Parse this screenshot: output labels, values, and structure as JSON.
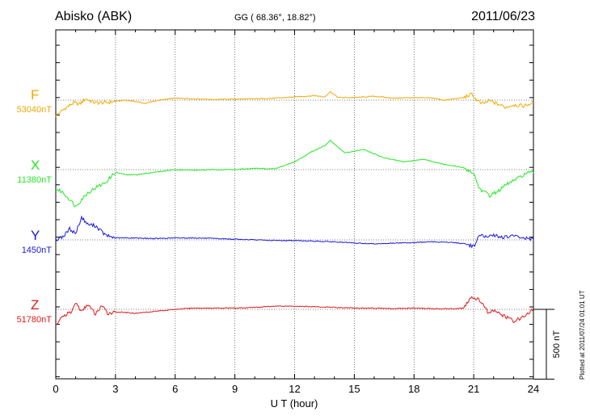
{
  "header": {
    "station": "Abisko (ABK)",
    "coords": "GG ( 68.36°,  18.82°)",
    "date": "2011/06/23"
  },
  "plotted_note": "Plotted at 2011/07/24 01:01 UT",
  "chart_data": {
    "type": "line",
    "xlabel": "U T (hour)",
    "xlim": [
      0,
      24
    ],
    "xticks": [
      0,
      3,
      6,
      9,
      12,
      15,
      18,
      21,
      24
    ],
    "scale_bar_label": "500 nT",
    "grid": true,
    "series": [
      {
        "name": "F",
        "baseline_label": "53040nT",
        "color": "#f0a800",
        "offset_x": [
          0,
          0.5,
          0.9,
          1.2,
          1.5,
          1.8,
          2.0,
          2.5,
          3.0,
          3.5,
          4.0,
          4.5,
          5.0,
          5.5,
          6.0,
          7.0,
          8.0,
          9.0,
          10.0,
          11.0,
          12.0,
          12.5,
          13.0,
          13.5,
          13.8,
          14.2,
          15.0,
          16.0,
          17.0,
          18.0,
          19.0,
          19.5,
          20.0,
          20.5,
          20.9,
          21.1,
          21.4,
          21.8,
          22.2,
          22.6,
          23.0,
          23.5,
          24.0
        ],
        "offset_y": [
          -120,
          -60,
          -20,
          -30,
          10,
          -10,
          -20,
          -20,
          -10,
          0,
          -10,
          -25,
          -5,
          5,
          15,
          10,
          5,
          8,
          10,
          15,
          25,
          30,
          35,
          25,
          65,
          20,
          20,
          30,
          15,
          20,
          15,
          0,
          10,
          20,
          45,
          10,
          -30,
          -5,
          -30,
          -55,
          -35,
          -45,
          -20
        ],
        "color_name": "orange"
      },
      {
        "name": "X",
        "baseline_label": "11380nT",
        "color": "#22e822",
        "offset_x": [
          0,
          0.3,
          0.7,
          1.0,
          1.3,
          1.6,
          2.0,
          2.5,
          3.0,
          3.5,
          4.0,
          5.0,
          6.0,
          7.0,
          8.0,
          9.0,
          10.0,
          11.0,
          12.0,
          13.0,
          13.5,
          13.8,
          14.5,
          15.5,
          16.5,
          17.5,
          18.5,
          19.5,
          20.5,
          21.0,
          21.3,
          21.8,
          22.2,
          22.7,
          23.2,
          23.6,
          24.0
        ],
        "offset_y": [
          -150,
          -170,
          -230,
          -285,
          -230,
          -180,
          -140,
          -100,
          -20,
          -40,
          -40,
          -20,
          0,
          -5,
          0,
          0,
          10,
          5,
          60,
          150,
          185,
          225,
          130,
          155,
          90,
          60,
          80,
          40,
          15,
          -30,
          -150,
          -200,
          -170,
          -110,
          -70,
          -30,
          -20
        ],
        "color_name": "green"
      },
      {
        "name": "Y",
        "baseline_label": "1450nT",
        "color": "#1818dd",
        "offset_x": [
          0,
          0.4,
          0.7,
          1.0,
          1.3,
          1.6,
          2.0,
          2.5,
          3.0,
          4.0,
          5.0,
          6.0,
          7.0,
          8.0,
          9.0,
          10.0,
          11.0,
          12.0,
          13.0,
          14.0,
          15.0,
          16.0,
          17.0,
          18.0,
          19.0,
          20.0,
          20.5,
          21.0,
          21.3,
          21.6,
          22.0,
          22.5,
          23.0,
          23.5,
          24.0
        ],
        "offset_y": [
          0,
          30,
          85,
          50,
          175,
          120,
          110,
          35,
          15,
          15,
          10,
          15,
          15,
          10,
          5,
          0,
          -5,
          -5,
          -10,
          -15,
          -25,
          -30,
          -25,
          -20,
          -15,
          -20,
          -30,
          -50,
          40,
          20,
          35,
          20,
          30,
          15,
          5
        ],
        "color_name": "blue"
      },
      {
        "name": "Z",
        "baseline_label": "51780nT",
        "color": "#e01818",
        "offset_x": [
          0,
          0.4,
          0.8,
          1.0,
          1.3,
          1.6,
          2.0,
          2.3,
          2.6,
          3.0,
          4.0,
          5.0,
          6.0,
          7.0,
          8.0,
          9.0,
          10.0,
          11.0,
          12.0,
          13.0,
          14.0,
          15.0,
          16.0,
          17.0,
          18.0,
          19.0,
          20.0,
          20.5,
          20.9,
          21.3,
          21.7,
          22.0,
          22.5,
          23.0,
          23.5,
          24.0
        ],
        "offset_y": [
          -120,
          -50,
          -20,
          55,
          -20,
          40,
          -40,
          30,
          -30,
          -20,
          -30,
          -15,
          0,
          10,
          10,
          10,
          15,
          25,
          25,
          20,
          15,
          10,
          10,
          5,
          10,
          5,
          5,
          10,
          95,
          70,
          -20,
          -10,
          -50,
          -90,
          -60,
          0
        ],
        "color_name": "red"
      }
    ]
  }
}
